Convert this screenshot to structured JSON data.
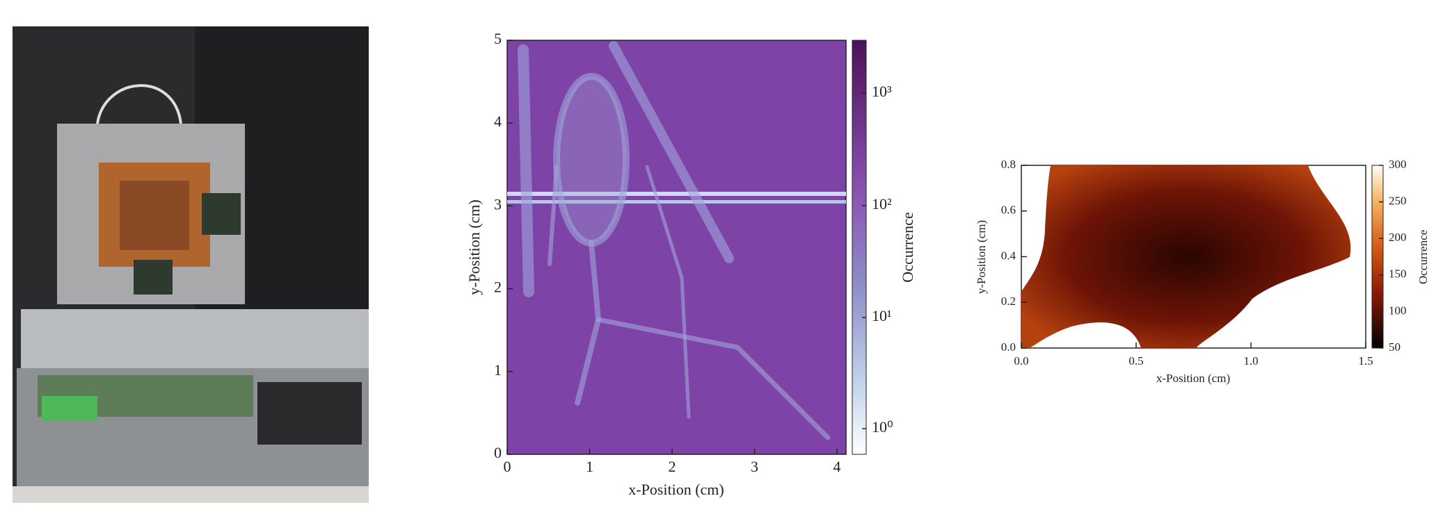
{
  "left_plot": {
    "x_axis": {
      "label": "x-Position (cm)",
      "ticks": [
        "0",
        "1",
        "2",
        "3",
        "4"
      ]
    },
    "y_axis": {
      "label": "y-Position (cm)",
      "ticks": [
        "0",
        "1",
        "2",
        "3",
        "4",
        "5"
      ]
    },
    "colorbar": {
      "label": "Occurrence",
      "ticks": [
        "10⁰",
        "10¹",
        "10²",
        "10³"
      ]
    }
  },
  "right_plot": {
    "x_axis": {
      "label": "x-Position (cm)",
      "ticks": [
        "0.0",
        "0.5",
        "1.0",
        "1.5"
      ]
    },
    "y_axis": {
      "label": "y-Position (cm)",
      "ticks": [
        "0.0",
        "0.2",
        "0.4",
        "0.6",
        "0.8"
      ]
    },
    "colorbar": {
      "label": "Occurrence",
      "ticks": [
        "50",
        "100",
        "150",
        "200",
        "250",
        "300"
      ]
    }
  }
}
